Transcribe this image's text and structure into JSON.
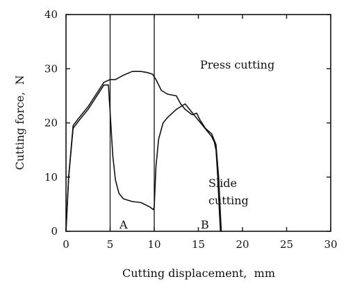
{
  "chart_data": {
    "type": "line",
    "title": "",
    "xlabel": "Cutting displacement,  mm",
    "ylabel": "Cutting force,  N",
    "xlim": [
      0,
      30
    ],
    "ylim": [
      0,
      40
    ],
    "xticks": [
      "0",
      "5",
      "10",
      "15",
      "20",
      "25",
      "30"
    ],
    "yticks": [
      "0",
      "10",
      "20",
      "30",
      "40"
    ],
    "grid": false,
    "series": [
      {
        "name": "Press cutting",
        "x": [
          0,
          0.3,
          0.8,
          1.5,
          2.5,
          3.5,
          4.3,
          5.0,
          5.6,
          6.5,
          7.5,
          8.5,
          9.2,
          9.8,
          10.2,
          10.8,
          11.5,
          12.5,
          13.0,
          13.5,
          14.3,
          14.8,
          15.2,
          15.8,
          16.5,
          17.0,
          17.3,
          17.5,
          17.6
        ],
        "y": [
          0,
          10,
          19.5,
          21,
          23,
          25.5,
          27.5,
          28,
          28,
          28.8,
          29.5,
          29.5,
          29.3,
          29,
          28,
          26,
          25.3,
          25,
          23.5,
          22.5,
          21.5,
          21.8,
          20.5,
          19,
          18,
          16,
          10,
          3,
          0
        ]
      },
      {
        "name": "Slide cutting",
        "x": [
          0,
          0.3,
          0.8,
          1.5,
          2.5,
          3.5,
          4.3,
          4.8,
          5.0,
          5.3,
          5.6,
          6.0,
          6.5,
          7.5,
          8.5,
          9.5,
          9.9,
          10.0,
          10.2,
          10.5,
          11.0,
          11.5,
          12.5,
          13.0,
          13.5,
          14.0,
          14.5,
          15.0,
          15.5,
          16.0,
          16.5,
          16.8,
          17.0,
          17.2,
          17.4,
          17.5
        ],
        "y": [
          0,
          10,
          19,
          20.5,
          22.5,
          25,
          27,
          27,
          22,
          14,
          9.5,
          7,
          6,
          5.5,
          5.3,
          4.5,
          4,
          4.5,
          12,
          17,
          20,
          21,
          22.5,
          23,
          23.5,
          22.5,
          21.5,
          20.5,
          19.5,
          18.5,
          17.5,
          16.5,
          15,
          10,
          3,
          0
        ]
      }
    ],
    "vertical_lines": [
      5,
      10
    ],
    "annotations": {
      "a": "A",
      "b": "B",
      "press": "Press cutting",
      "slide_1": "Slide",
      "slide_2": "cutting"
    }
  }
}
